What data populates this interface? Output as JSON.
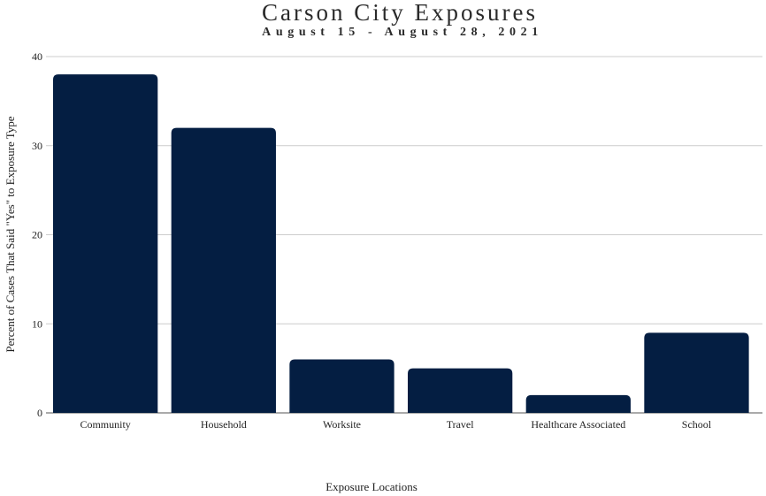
{
  "chart_data": {
    "type": "bar",
    "title": "Carson City Exposures",
    "subtitle": "August 15 - August 28, 2021",
    "xlabel": "Exposure Locations",
    "ylabel": "Percent of Cases That Said \"Yes\" to Exposure Type",
    "categories": [
      "Community",
      "Household",
      "Worksite",
      "Travel",
      "Healthcare Associated",
      "School"
    ],
    "values": [
      38,
      32,
      6,
      5,
      2,
      9
    ],
    "ylim": [
      0,
      40
    ],
    "yticks": [
      0,
      10,
      20,
      30,
      40
    ],
    "grid": true,
    "legend": "none",
    "bar_color": "#041e42"
  }
}
